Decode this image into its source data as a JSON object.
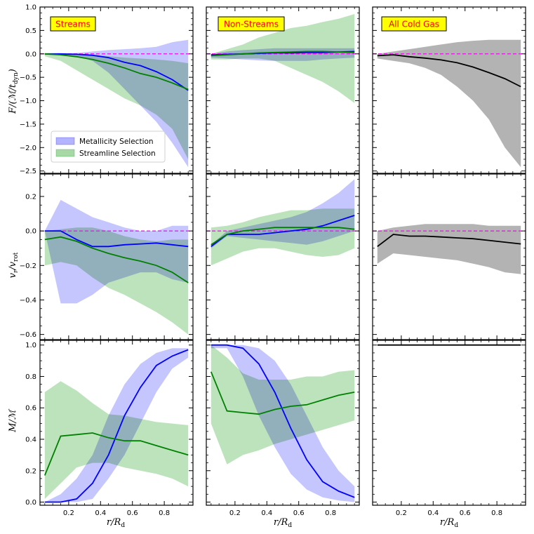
{
  "chart_data": {
    "type": "line",
    "x": [
      0.05,
      0.15,
      0.25,
      0.35,
      0.45,
      0.55,
      0.65,
      0.75,
      0.85,
      0.95
    ],
    "xlabel": "r/R_d",
    "xticks": [
      0.2,
      0.4,
      0.6,
      0.8
    ],
    "xtick_labels": [
      "0.2",
      "0.4",
      "0.6",
      "0.8"
    ],
    "xlim": [
      0.02,
      0.98
    ],
    "columns": [
      "Streams",
      "Non-Streams",
      "All Cold Gas"
    ],
    "legend": {
      "placement": "lower-left of top-left panel",
      "entries": [
        {
          "label": "Metallicity Selection",
          "color": "#0000ff"
        },
        {
          "label": "Streamline Selection",
          "color": "#008000"
        }
      ]
    },
    "colors": {
      "metallicity_line": "#0000ff",
      "metallicity_band": "#b3b3ff",
      "streamline_line": "#008000",
      "streamline_band": "#a6d9a6",
      "all_line": "#000000",
      "all_band": "#b3b3b3",
      "zero_line": "#ff00ff",
      "title_box": "#ffff00",
      "title_text": "#ff0000"
    },
    "rows": [
      {
        "ylabel": "F/(M/t_dyn)",
        "ylim": [
          -2.55,
          1.0
        ],
        "yticks": [
          1.0,
          0.5,
          0.0,
          -0.5,
          -1.0,
          -1.5,
          -2.0,
          -2.5
        ],
        "ytick_labels": [
          "1.0",
          "0.5",
          "0.0",
          "−0.5",
          "−1.0",
          "−1.5",
          "−2.0",
          "−2.5"
        ],
        "zero_line": true,
        "panels": [
          {
            "metallicity": {
              "line": [
                0.0,
                0.0,
                -0.01,
                -0.03,
                -0.08,
                -0.18,
                -0.25,
                -0.38,
                -0.55,
                -0.78
              ],
              "low": [
                0.0,
                -0.01,
                -0.05,
                -0.15,
                -0.4,
                -0.75,
                -1.1,
                -1.45,
                -1.9,
                -2.42
              ],
              "high": [
                0.0,
                0.0,
                0.02,
                0.05,
                0.08,
                0.1,
                0.12,
                0.15,
                0.25,
                0.3
              ]
            },
            "streamline": {
              "line": [
                0.0,
                -0.02,
                -0.06,
                -0.12,
                -0.2,
                -0.3,
                -0.42,
                -0.5,
                -0.62,
                -0.76
              ],
              "low": [
                -0.05,
                -0.15,
                -0.35,
                -0.55,
                -0.75,
                -0.95,
                -1.1,
                -1.3,
                -1.6,
                -2.25
              ],
              "high": [
                0.0,
                0.0,
                0.0,
                -0.02,
                -0.05,
                -0.08,
                -0.1,
                -0.12,
                -0.15,
                -0.2
              ]
            }
          },
          {
            "metallicity": {
              "line": [
                -0.02,
                -0.01,
                0.0,
                0.01,
                0.02,
                0.02,
                0.03,
                0.03,
                0.04,
                0.05
              ],
              "low": [
                -0.08,
                -0.1,
                -0.12,
                -0.14,
                -0.15,
                -0.15,
                -0.15,
                -0.12,
                -0.1,
                -0.08
              ],
              "high": [
                0.0,
                0.05,
                0.08,
                0.1,
                0.12,
                0.12,
                0.12,
                0.12,
                0.12,
                0.12
              ]
            },
            "streamline": {
              "line": [
                -0.04,
                -0.02,
                0.0,
                0.02,
                0.03,
                0.04,
                0.05,
                0.05,
                0.04,
                0.03
              ],
              "low": [
                -0.12,
                -0.12,
                -0.1,
                -0.1,
                -0.15,
                -0.3,
                -0.45,
                -0.6,
                -0.8,
                -1.05
              ],
              "high": [
                0.0,
                0.1,
                0.2,
                0.35,
                0.45,
                0.55,
                0.6,
                0.68,
                0.75,
                0.85
              ]
            }
          },
          {
            "all": {
              "line": [
                -0.04,
                -0.02,
                -0.06,
                -0.09,
                -0.13,
                -0.19,
                -0.28,
                -0.4,
                -0.53,
                -0.7
              ],
              "low": [
                -0.1,
                -0.15,
                -0.2,
                -0.3,
                -0.45,
                -0.7,
                -1.0,
                -1.4,
                -2.0,
                -2.42
              ],
              "high": [
                0.0,
                0.05,
                0.1,
                0.15,
                0.2,
                0.25,
                0.28,
                0.3,
                0.3,
                0.3
              ]
            }
          }
        ]
      },
      {
        "ylabel": "v_r/v_rot",
        "ylim": [
          -0.63,
          0.33
        ],
        "yticks": [
          0.2,
          0.0,
          -0.2,
          -0.4,
          -0.6
        ],
        "ytick_labels": [
          "0.2",
          "0.0",
          "−0.2",
          "−0.4",
          "−0.6"
        ],
        "zero_line": true,
        "panels": [
          {
            "metallicity": {
              "line": [
                0.0,
                0.0,
                -0.05,
                -0.09,
                -0.09,
                -0.08,
                -0.075,
                -0.07,
                -0.08,
                -0.09
              ],
              "low": [
                0.0,
                -0.42,
                -0.42,
                -0.37,
                -0.3,
                -0.27,
                -0.24,
                -0.24,
                -0.28,
                -0.3
              ],
              "high": [
                0.0,
                0.18,
                0.13,
                0.08,
                0.05,
                0.02,
                0.0,
                0.0,
                0.03,
                0.03
              ]
            },
            "streamline": {
              "line": [
                -0.05,
                -0.035,
                -0.06,
                -0.1,
                -0.13,
                -0.155,
                -0.175,
                -0.2,
                -0.24,
                -0.3
              ],
              "low": [
                -0.2,
                -0.18,
                -0.2,
                -0.27,
                -0.33,
                -0.37,
                -0.42,
                -0.47,
                -0.53,
                -0.6
              ],
              "high": [
                0.0,
                0.01,
                0.02,
                0.02,
                0.0,
                -0.03,
                -0.05,
                -0.06,
                -0.05,
                -0.05
              ]
            }
          },
          {
            "metallicity": {
              "line": [
                -0.09,
                -0.02,
                -0.02,
                -0.02,
                -0.01,
                0.0,
                0.01,
                0.03,
                0.06,
                0.09
              ],
              "low": [
                -0.1,
                -0.03,
                -0.04,
                -0.05,
                -0.06,
                -0.07,
                -0.08,
                -0.06,
                -0.03,
                0.0
              ],
              "high": [
                -0.08,
                0.0,
                0.02,
                0.04,
                0.06,
                0.08,
                0.11,
                0.16,
                0.22,
                0.3
              ]
            },
            "streamline": {
              "line": [
                -0.08,
                -0.02,
                0.0,
                0.01,
                0.02,
                0.02,
                0.02,
                0.02,
                0.02,
                0.01
              ],
              "low": [
                -0.2,
                -0.16,
                -0.12,
                -0.1,
                -0.1,
                -0.12,
                -0.14,
                -0.15,
                -0.14,
                -0.1
              ],
              "high": [
                0.02,
                0.03,
                0.05,
                0.08,
                0.1,
                0.12,
                0.12,
                0.13,
                0.13,
                0.13
              ]
            }
          },
          {
            "all": {
              "line": [
                -0.09,
                -0.02,
                -0.03,
                -0.03,
                -0.035,
                -0.04,
                -0.045,
                -0.055,
                -0.065,
                -0.075
              ],
              "low": [
                -0.19,
                -0.13,
                -0.14,
                -0.15,
                -0.16,
                -0.17,
                -0.19,
                -0.21,
                -0.24,
                -0.25
              ],
              "high": [
                0.0,
                0.02,
                0.03,
                0.04,
                0.04,
                0.04,
                0.04,
                0.03,
                0.03,
                0.03
              ]
            }
          }
        ]
      },
      {
        "ylabel": "M/M",
        "ylim": [
          -0.02,
          1.03
        ],
        "yticks": [
          1.0,
          0.8,
          0.6,
          0.4,
          0.2,
          0.0
        ],
        "ytick_labels": [
          "1.0",
          "0.8",
          "0.6",
          "0.4",
          "0.2",
          "0.0"
        ],
        "zero_line": false,
        "panels": [
          {
            "metallicity": {
              "line": [
                0.0,
                0.0,
                0.02,
                0.12,
                0.3,
                0.55,
                0.73,
                0.87,
                0.93,
                0.97
              ],
              "low": [
                0.0,
                0.0,
                0.0,
                0.02,
                0.15,
                0.3,
                0.5,
                0.7,
                0.85,
                0.92
              ],
              "high": [
                0.0,
                0.05,
                0.15,
                0.3,
                0.55,
                0.75,
                0.88,
                0.95,
                0.98,
                0.98
              ]
            },
            "streamline": {
              "line": [
                0.17,
                0.42,
                0.43,
                0.44,
                0.41,
                0.39,
                0.39,
                0.36,
                0.33,
                0.3
              ],
              "low": [
                0.02,
                0.12,
                0.22,
                0.25,
                0.25,
                0.22,
                0.2,
                0.18,
                0.15,
                0.1
              ],
              "high": [
                0.7,
                0.77,
                0.71,
                0.63,
                0.56,
                0.55,
                0.53,
                0.51,
                0.5,
                0.49
              ]
            }
          },
          {
            "metallicity": {
              "line": [
                1.0,
                1.0,
                0.98,
                0.88,
                0.7,
                0.47,
                0.27,
                0.13,
                0.07,
                0.03
              ],
              "low": [
                0.98,
                0.98,
                0.8,
                0.55,
                0.35,
                0.18,
                0.08,
                0.03,
                0.01,
                0.0
              ],
              "high": [
                1.0,
                1.0,
                1.0,
                0.98,
                0.9,
                0.75,
                0.55,
                0.35,
                0.2,
                0.1
              ]
            },
            "streamline": {
              "line": [
                0.83,
                0.58,
                0.57,
                0.56,
                0.59,
                0.61,
                0.62,
                0.65,
                0.68,
                0.7
              ],
              "low": [
                0.5,
                0.24,
                0.3,
                0.33,
                0.37,
                0.4,
                0.43,
                0.46,
                0.49,
                0.52
              ],
              "high": [
                1.0,
                0.92,
                0.82,
                0.78,
                0.78,
                0.78,
                0.8,
                0.8,
                0.83,
                0.84
              ]
            }
          },
          {
            "all": {
              "line": [
                1.0,
                1.0,
                1.0,
                1.0,
                1.0,
                1.0,
                1.0,
                1.0,
                1.0,
                1.0
              ],
              "low": [
                1.0,
                1.0,
                1.0,
                1.0,
                1.0,
                1.0,
                1.0,
                1.0,
                1.0,
                1.0
              ],
              "high": [
                1.0,
                1.0,
                1.0,
                1.0,
                1.0,
                1.0,
                1.0,
                1.0,
                1.0,
                1.0
              ]
            }
          }
        ]
      }
    ]
  }
}
